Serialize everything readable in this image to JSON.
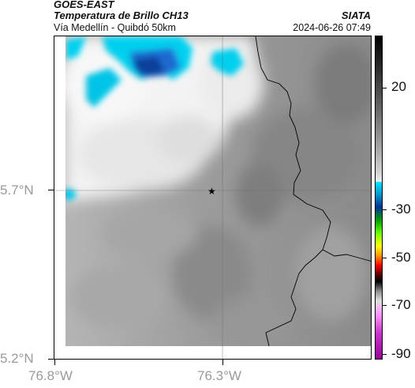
{
  "header": {
    "source": "GOES-EAST",
    "product": "Temperatura de Brillo CH13",
    "route": "Vía Medellín - Quibdó 50km",
    "org": "SIATA",
    "datetime": "2024-06-26 07:49"
  },
  "map": {
    "lon_ticks": [
      "76.8°W",
      "76.3°W"
    ],
    "lat_ticks": [
      "5.7°N",
      "5.2°N"
    ],
    "marker": "star-marker",
    "colors": {
      "cloud_cold": "#00cfee",
      "cloud_colder": "#1a66cc",
      "land": "#8c8c8c",
      "warm_cloud": "#f2f2f2",
      "border": "#000000"
    }
  },
  "colorbar": {
    "labels": [
      "20",
      "-30",
      "-50",
      "-70",
      "-90"
    ]
  }
}
